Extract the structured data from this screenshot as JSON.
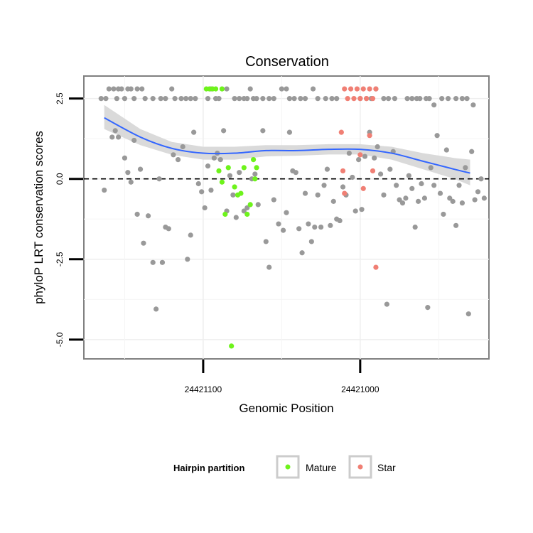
{
  "chart_data": {
    "type": "scatter",
    "title": "Conservation",
    "xlabel": "Genomic Position",
    "ylabel": "phyloP LRT conservation scores",
    "x_axis_reversed": true,
    "xlim": [
      24421176,
      24420918
    ],
    "ylim": [
      -5.6,
      3.2
    ],
    "x_ticks": [
      24421100,
      24421000
    ],
    "x_tick_labels": [
      "24421100",
      "24421000"
    ],
    "y_ticks": [
      2.5,
      0.0,
      -2.5,
      -5.0
    ],
    "y_tick_labels": [
      "2.5",
      "0.0",
      "-2.5",
      "-5.0"
    ],
    "grid": true,
    "reference_line": {
      "y": 0,
      "style": "dashed"
    },
    "legend": {
      "title": "Hairpin partition",
      "placement": "bottom",
      "entries": [
        {
          "label": "Mature",
          "color": "#6ef31b"
        },
        {
          "label": "Star",
          "color": "#f07f74"
        }
      ]
    },
    "colors": {
      "Other": "#999999",
      "Mature": "#6ef31b",
      "Star": "#f07f74",
      "smooth": "#3366ff",
      "ribbon": "#d6d6d6"
    },
    "smooth": {
      "x": [
        24421163,
        24421140,
        24421120,
        24421100,
        24421080,
        24421060,
        24421040,
        24421020,
        24421000,
        24420980,
        24420960,
        24420940,
        24420930
      ],
      "y": [
        1.9,
        1.3,
        0.95,
        0.8,
        0.8,
        0.88,
        0.88,
        0.92,
        0.92,
        0.8,
        0.55,
        0.3,
        0.18
      ],
      "lower": [
        1.55,
        1.05,
        0.75,
        0.6,
        0.6,
        0.7,
        0.72,
        0.76,
        0.76,
        0.6,
        0.3,
        0.0,
        -0.2
      ],
      "upper": [
        2.3,
        1.55,
        1.15,
        1.0,
        1.0,
        1.05,
        1.05,
        1.08,
        1.08,
        1.0,
        0.8,
        0.65,
        0.6
      ]
    },
    "series": [
      {
        "name": "Other",
        "points": [
          [
            24421165,
            2.5
          ],
          [
            24421162,
            2.5
          ],
          [
            24421160,
            2.8
          ],
          [
            24421157,
            2.8
          ],
          [
            24421155,
            2.5
          ],
          [
            24421154,
            2.8
          ],
          [
            24421152,
            2.8
          ],
          [
            24421150,
            2.5
          ],
          [
            24421148,
            2.8
          ],
          [
            24421146,
            2.8
          ],
          [
            24421144,
            2.5
          ],
          [
            24421142,
            2.8
          ],
          [
            24421139,
            2.8
          ],
          [
            24421137,
            2.5
          ],
          [
            24421132,
            2.5
          ],
          [
            24421127,
            2.5
          ],
          [
            24421124,
            2.5
          ],
          [
            24421120,
            2.8
          ],
          [
            24421118,
            2.5
          ],
          [
            24421114,
            2.5
          ],
          [
            24421111,
            2.5
          ],
          [
            24421108,
            2.5
          ],
          [
            24421105,
            2.5
          ],
          [
            24421097,
            2.5
          ],
          [
            24421095,
            2.8
          ],
          [
            24421092,
            2.5
          ],
          [
            24421090,
            2.5
          ],
          [
            24421085,
            2.8
          ],
          [
            24421080,
            2.5
          ],
          [
            24421077,
            2.5
          ],
          [
            24421074,
            2.5
          ],
          [
            24421072,
            2.5
          ],
          [
            24421070,
            2.8
          ],
          [
            24421068,
            2.5
          ],
          [
            24421066,
            2.5
          ],
          [
            24421062,
            2.5
          ],
          [
            24421058,
            2.5
          ],
          [
            24421055,
            2.5
          ],
          [
            24421050,
            2.8
          ],
          [
            24421047,
            2.8
          ],
          [
            24421045,
            2.5
          ],
          [
            24421042,
            2.5
          ],
          [
            24421038,
            2.5
          ],
          [
            24421035,
            2.5
          ],
          [
            24421030,
            2.8
          ],
          [
            24421027,
            2.5
          ],
          [
            24421022,
            2.5
          ],
          [
            24421018,
            2.5
          ],
          [
            24421015,
            2.5
          ],
          [
            24421000,
            2.5
          ],
          [
            24420996,
            2.5
          ],
          [
            24420993,
            2.5
          ],
          [
            24420990,
            2.8
          ],
          [
            24420985,
            2.5
          ],
          [
            24420982,
            2.5
          ],
          [
            24420978,
            2.5
          ],
          [
            24420970,
            2.5
          ],
          [
            24420967,
            2.5
          ],
          [
            24420964,
            2.5
          ],
          [
            24420962,
            2.5
          ],
          [
            24420958,
            2.5
          ],
          [
            24420956,
            2.5
          ],
          [
            24420953,
            2.3
          ],
          [
            24420948,
            2.5
          ],
          [
            24420944,
            2.5
          ],
          [
            24420939,
            2.5
          ],
          [
            24420935,
            2.5
          ],
          [
            24420932,
            2.5
          ],
          [
            24420928,
            2.3
          ],
          [
            24421163,
            -0.35
          ],
          [
            24421158,
            1.3
          ],
          [
            24421156,
            1.5
          ],
          [
            24421154,
            1.3
          ],
          [
            24421150,
            0.65
          ],
          [
            24421148,
            0.2
          ],
          [
            24421146,
            -0.1
          ],
          [
            24421144,
            1.2
          ],
          [
            24421142,
            -1.1
          ],
          [
            24421140,
            0.3
          ],
          [
            24421138,
            -2.0
          ],
          [
            24421135,
            -1.15
          ],
          [
            24421132,
            -2.6
          ],
          [
            24421130,
            -4.05
          ],
          [
            24421128,
            0.0
          ],
          [
            24421126,
            -2.6
          ],
          [
            24421124,
            -1.5
          ],
          [
            24421122,
            -1.55
          ],
          [
            24421119,
            0.75
          ],
          [
            24421116,
            0.6
          ],
          [
            24421113,
            1.0
          ],
          [
            24421110,
            -2.5
          ],
          [
            24421108,
            -1.75
          ],
          [
            24421106,
            1.45
          ],
          [
            24421103,
            -0.15
          ],
          [
            24421101,
            -0.4
          ],
          [
            24421099,
            -0.9
          ],
          [
            24421097,
            0.4
          ],
          [
            24421095,
            -0.35
          ],
          [
            24421093,
            0.65
          ],
          [
            24421091,
            0.8
          ],
          [
            24421089,
            0.6
          ],
          [
            24421087,
            1.5
          ],
          [
            24421085,
            -1.0
          ],
          [
            24421083,
            0.1
          ],
          [
            24421081,
            -0.5
          ],
          [
            24421079,
            -1.2
          ],
          [
            24421077,
            0.2
          ],
          [
            24421074,
            -1.0
          ],
          [
            24421072,
            -0.9
          ],
          [
            24421069,
            0.0
          ],
          [
            24421067,
            0.15
          ],
          [
            24421065,
            -0.8
          ],
          [
            24421062,
            1.5
          ],
          [
            24421060,
            -1.95
          ],
          [
            24421058,
            -2.75
          ],
          [
            24421055,
            -0.65
          ],
          [
            24421052,
            -1.4
          ],
          [
            24421049,
            -1.6
          ],
          [
            24421047,
            -1.05
          ],
          [
            24421045,
            1.45
          ],
          [
            24421043,
            0.25
          ],
          [
            24421041,
            0.2
          ],
          [
            24421039,
            -1.55
          ],
          [
            24421037,
            -2.3
          ],
          [
            24421035,
            -0.45
          ],
          [
            24421033,
            -1.4
          ],
          [
            24421031,
            -1.95
          ],
          [
            24421029,
            -1.5
          ],
          [
            24421027,
            -0.5
          ],
          [
            24421025,
            -1.5
          ],
          [
            24421023,
            -0.2
          ],
          [
            24421021,
            0.3
          ],
          [
            24421019,
            -1.45
          ],
          [
            24421017,
            -0.7
          ],
          [
            24421015,
            -1.25
          ],
          [
            24421013,
            -1.3
          ],
          [
            24421011,
            -0.25
          ],
          [
            24421009,
            -0.5
          ],
          [
            24421007,
            0.8
          ],
          [
            24421005,
            0.05
          ],
          [
            24421003,
            -1.0
          ],
          [
            24421001,
            0.6
          ],
          [
            24420999,
            -0.95
          ],
          [
            24420997,
            0.7
          ],
          [
            24420994,
            1.45
          ],
          [
            24420991,
            0.65
          ],
          [
            24420989,
            1.0
          ],
          [
            24420987,
            0.15
          ],
          [
            24420985,
            -0.5
          ],
          [
            24420983,
            -3.9
          ],
          [
            24420981,
            0.3
          ],
          [
            24420979,
            0.85
          ],
          [
            24420977,
            -0.2
          ],
          [
            24420975,
            -0.65
          ],
          [
            24420973,
            -0.75
          ],
          [
            24420971,
            -0.6
          ],
          [
            24420969,
            0.1
          ],
          [
            24420967,
            -0.3
          ],
          [
            24420965,
            -1.5
          ],
          [
            24420963,
            -0.7
          ],
          [
            24420961,
            -0.15
          ],
          [
            24420959,
            -0.6
          ],
          [
            24420957,
            -4.0
          ],
          [
            24420955,
            0.35
          ],
          [
            24420953,
            -0.2
          ],
          [
            24420951,
            1.35
          ],
          [
            24420949,
            -0.45
          ],
          [
            24420947,
            -1.1
          ],
          [
            24420945,
            0.9
          ],
          [
            24420943,
            -0.6
          ],
          [
            24420941,
            -0.7
          ],
          [
            24420939,
            -1.45
          ],
          [
            24420937,
            -0.2
          ],
          [
            24420935,
            -0.75
          ],
          [
            24420933,
            0.35
          ],
          [
            24420931,
            -4.2
          ],
          [
            24420929,
            0.85
          ],
          [
            24420927,
            -0.65
          ],
          [
            24420925,
            -0.4
          ],
          [
            24420923,
            0.0
          ],
          [
            24420921,
            -0.6
          ]
        ]
      },
      {
        "name": "Mature",
        "points": [
          [
            24421098,
            2.8
          ],
          [
            24421096,
            2.8
          ],
          [
            24421094,
            2.8
          ],
          [
            24421092,
            2.8
          ],
          [
            24421088,
            2.8
          ],
          [
            24421090,
            0.25
          ],
          [
            24421088,
            -0.1
          ],
          [
            24421086,
            -1.1
          ],
          [
            24421084,
            0.35
          ],
          [
            24421082,
            -5.2
          ],
          [
            24421080,
            -0.25
          ],
          [
            24421078,
            -0.5
          ],
          [
            24421076,
            -0.45
          ],
          [
            24421074,
            0.35
          ],
          [
            24421072,
            -1.1
          ],
          [
            24421070,
            -0.8
          ],
          [
            24421068,
            0.6
          ],
          [
            24421067,
            0.0
          ],
          [
            24421066,
            0.35
          ]
        ]
      },
      {
        "name": "Star",
        "points": [
          [
            24421010,
            2.8
          ],
          [
            24421008,
            2.5
          ],
          [
            24421006,
            2.8
          ],
          [
            24421004,
            2.5
          ],
          [
            24421002,
            2.8
          ],
          [
            24421000,
            2.5
          ],
          [
            24420998,
            2.8
          ],
          [
            24420996,
            2.5
          ],
          [
            24420994,
            2.8
          ],
          [
            24420992,
            2.5
          ],
          [
            24420990,
            2.8
          ],
          [
            24421012,
            1.45
          ],
          [
            24421011,
            0.25
          ],
          [
            24421010,
            -0.45
          ],
          [
            24421000,
            0.75
          ],
          [
            24420998,
            -0.3
          ],
          [
            24420994,
            1.35
          ],
          [
            24420992,
            0.25
          ],
          [
            24420990,
            -2.75
          ]
        ]
      }
    ]
  }
}
